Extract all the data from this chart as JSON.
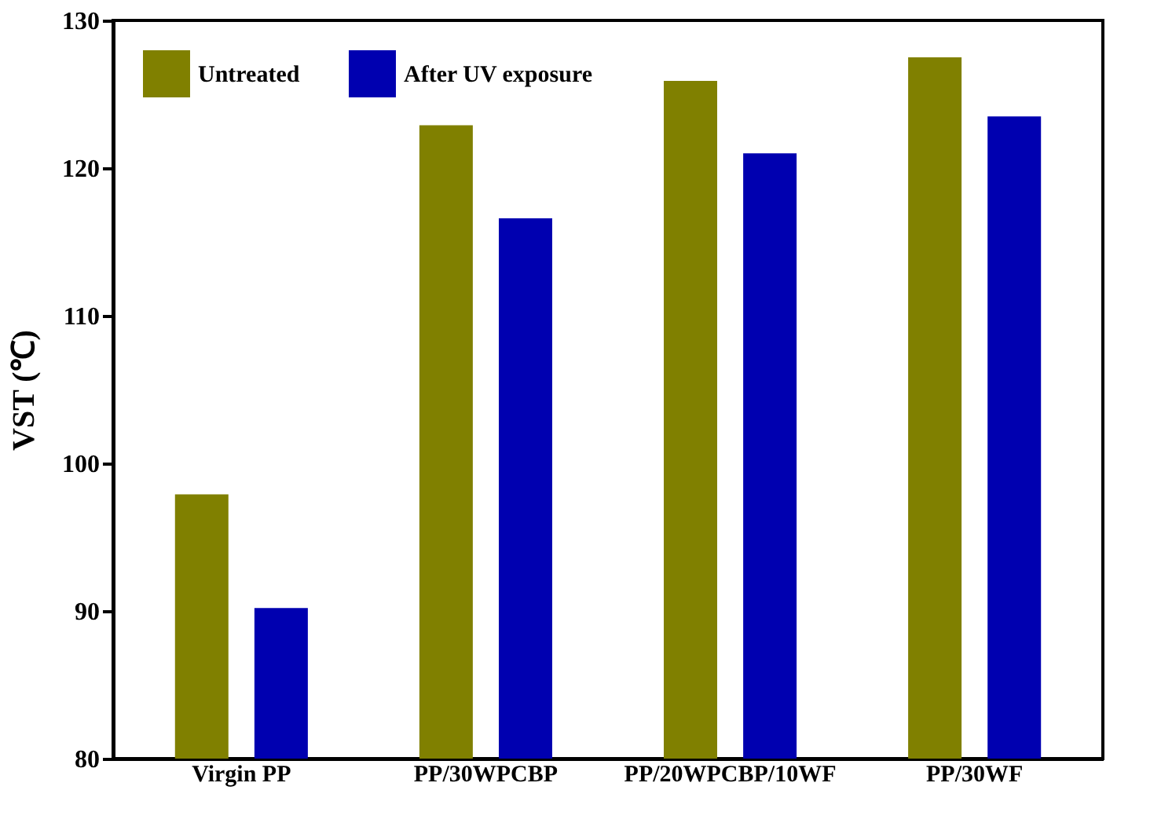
{
  "chart_data": {
    "type": "bar",
    "ylabel": "VST (℃)",
    "categories": [
      "Virgin PP",
      "PP/30WPCBP",
      "PP/20WPCBP/10WF",
      "PP/30WF"
    ],
    "series": [
      {
        "name": "Untreated",
        "color": "#808000",
        "values": [
          97.9,
          122.9,
          125.9,
          127.5
        ]
      },
      {
        "name": "After UV exposure",
        "color": "#0000b0",
        "values": [
          90.2,
          116.6,
          121.0,
          123.5
        ]
      }
    ],
    "ylim": [
      80,
      130
    ],
    "yticks": [
      80,
      90,
      100,
      110,
      120,
      130
    ],
    "grid": false,
    "legend": "top left"
  }
}
